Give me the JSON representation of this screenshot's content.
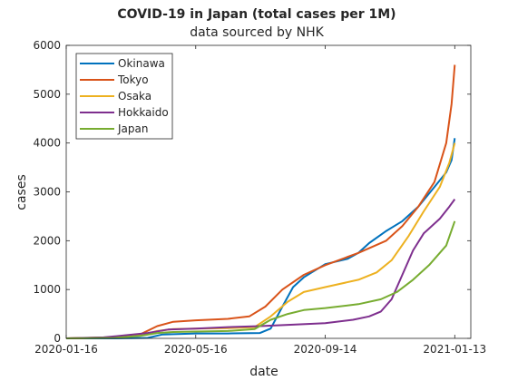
{
  "chart_data": {
    "type": "line",
    "title": "COVID-19 in Japan (total cases per 1M)",
    "subtitle": "data sourced by NHK",
    "xlabel": "date",
    "ylabel": "cases",
    "xlim": [
      "2020-01-16",
      "2021-01-28"
    ],
    "ylim": [
      0,
      6000
    ],
    "xticks": [
      "2020-01-16",
      "2020-05-16",
      "2020-09-14",
      "2021-01-13"
    ],
    "yticks": [
      0,
      1000,
      2000,
      3000,
      4000,
      5000,
      6000
    ],
    "grid": false,
    "legend_position": "top-left",
    "series": [
      {
        "name": "Okinawa",
        "color": "#0072BD",
        "points": [
          [
            "2020-01-16",
            0
          ],
          [
            "2020-03-01",
            0
          ],
          [
            "2020-04-01",
            10
          ],
          [
            "2020-04-15",
            80
          ],
          [
            "2020-05-16",
            100
          ],
          [
            "2020-06-15",
            100
          ],
          [
            "2020-07-15",
            110
          ],
          [
            "2020-07-25",
            200
          ],
          [
            "2020-08-05",
            650
          ],
          [
            "2020-08-15",
            1050
          ],
          [
            "2020-08-25",
            1250
          ],
          [
            "2020-09-14",
            1520
          ],
          [
            "2020-10-05",
            1630
          ],
          [
            "2020-10-15",
            1750
          ],
          [
            "2020-10-25",
            1950
          ],
          [
            "2020-11-10",
            2200
          ],
          [
            "2020-11-25",
            2400
          ],
          [
            "2020-12-10",
            2700
          ],
          [
            "2020-12-25",
            3100
          ],
          [
            "2021-01-05",
            3400
          ],
          [
            "2021-01-10",
            3650
          ],
          [
            "2021-01-13",
            4100
          ]
        ]
      },
      {
        "name": "Tokyo",
        "color": "#D95319",
        "points": [
          [
            "2020-01-16",
            0
          ],
          [
            "2020-03-01",
            20
          ],
          [
            "2020-03-25",
            80
          ],
          [
            "2020-04-10",
            250
          ],
          [
            "2020-04-25",
            340
          ],
          [
            "2020-05-16",
            370
          ],
          [
            "2020-06-15",
            400
          ],
          [
            "2020-07-05",
            450
          ],
          [
            "2020-07-20",
            650
          ],
          [
            "2020-08-05",
            1000
          ],
          [
            "2020-08-25",
            1300
          ],
          [
            "2020-09-14",
            1500
          ],
          [
            "2020-10-15",
            1750
          ],
          [
            "2020-11-10",
            2000
          ],
          [
            "2020-11-25",
            2300
          ],
          [
            "2020-12-10",
            2700
          ],
          [
            "2020-12-25",
            3200
          ],
          [
            "2021-01-05",
            4000
          ],
          [
            "2021-01-10",
            4800
          ],
          [
            "2021-01-13",
            5600
          ]
        ]
      },
      {
        "name": "Osaka",
        "color": "#EDB120",
        "points": [
          [
            "2020-01-16",
            0
          ],
          [
            "2020-03-01",
            20
          ],
          [
            "2020-03-25",
            60
          ],
          [
            "2020-04-10",
            150
          ],
          [
            "2020-04-25",
            190
          ],
          [
            "2020-05-16",
            200
          ],
          [
            "2020-06-15",
            210
          ],
          [
            "2020-07-10",
            230
          ],
          [
            "2020-07-25",
            450
          ],
          [
            "2020-08-10",
            750
          ],
          [
            "2020-08-25",
            950
          ],
          [
            "2020-09-14",
            1050
          ],
          [
            "2020-10-15",
            1200
          ],
          [
            "2020-11-01",
            1350
          ],
          [
            "2020-11-15",
            1600
          ],
          [
            "2020-12-01",
            2100
          ],
          [
            "2020-12-15",
            2600
          ],
          [
            "2020-12-30",
            3100
          ],
          [
            "2021-01-08",
            3600
          ],
          [
            "2021-01-13",
            4000
          ]
        ]
      },
      {
        "name": "Hokkaido",
        "color": "#7E2F8E",
        "points": [
          [
            "2020-01-16",
            0
          ],
          [
            "2020-02-20",
            20
          ],
          [
            "2020-03-10",
            60
          ],
          [
            "2020-04-01",
            110
          ],
          [
            "2020-04-20",
            180
          ],
          [
            "2020-05-16",
            200
          ],
          [
            "2020-06-15",
            230
          ],
          [
            "2020-07-15",
            250
          ],
          [
            "2020-08-15",
            280
          ],
          [
            "2020-09-14",
            310
          ],
          [
            "2020-10-10",
            380
          ],
          [
            "2020-10-25",
            450
          ],
          [
            "2020-11-05",
            550
          ],
          [
            "2020-11-15",
            800
          ],
          [
            "2020-11-25",
            1300
          ],
          [
            "2020-12-05",
            1800
          ],
          [
            "2020-12-15",
            2150
          ],
          [
            "2020-12-30",
            2450
          ],
          [
            "2021-01-08",
            2700
          ],
          [
            "2021-01-13",
            2850
          ]
        ]
      },
      {
        "name": "Japan",
        "color": "#77AC30",
        "points": [
          [
            "2020-01-16",
            0
          ],
          [
            "2020-03-01",
            10
          ],
          [
            "2020-03-25",
            50
          ],
          [
            "2020-04-10",
            110
          ],
          [
            "2020-04-25",
            130
          ],
          [
            "2020-05-16",
            140
          ],
          [
            "2020-06-15",
            150
          ],
          [
            "2020-07-10",
            190
          ],
          [
            "2020-07-25",
            380
          ],
          [
            "2020-08-10",
            500
          ],
          [
            "2020-08-25",
            580
          ],
          [
            "2020-09-14",
            620
          ],
          [
            "2020-10-15",
            700
          ],
          [
            "2020-11-05",
            800
          ],
          [
            "2020-11-20",
            950
          ],
          [
            "2020-12-05",
            1200
          ],
          [
            "2020-12-20",
            1500
          ],
          [
            "2021-01-05",
            1900
          ],
          [
            "2021-01-13",
            2400
          ]
        ]
      }
    ]
  }
}
